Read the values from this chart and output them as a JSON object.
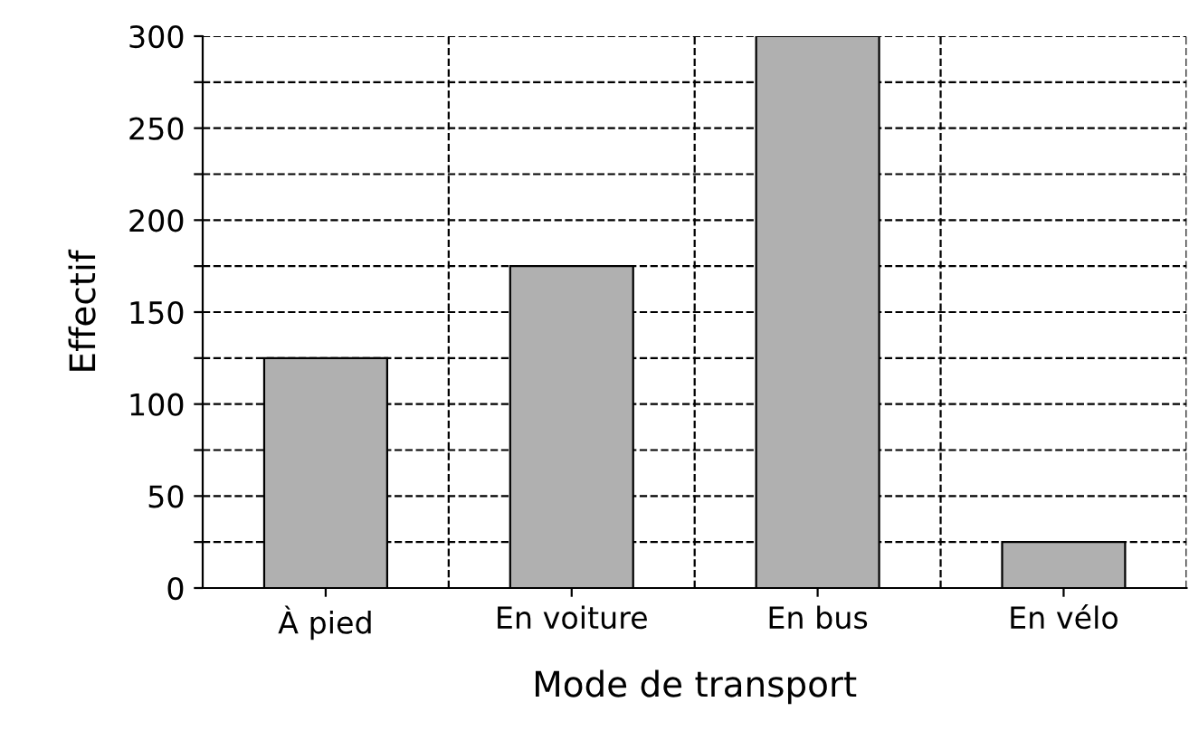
{
  "chart_data": {
    "type": "bar",
    "xlabel": "Mode de transport",
    "ylabel": "Effectif",
    "categories": [
      "À pied",
      "En voiture",
      "En bus",
      "En vélo"
    ],
    "values": [
      125,
      175,
      300,
      25
    ],
    "color": "#b0b0b0",
    "ylim": [
      0,
      300
    ],
    "yticks": [
      0,
      {
        "value": 25,
        "label": null
      },
      50,
      {
        "value": 75,
        "label": null
      },
      100,
      {
        "value": 125,
        "label": null
      },
      150,
      {
        "value": 175,
        "label": null
      },
      200,
      {
        "value": 225,
        "label": null
      },
      250,
      {
        "value": 275,
        "label": null
      },
      300
    ],
    "grid": true
  }
}
